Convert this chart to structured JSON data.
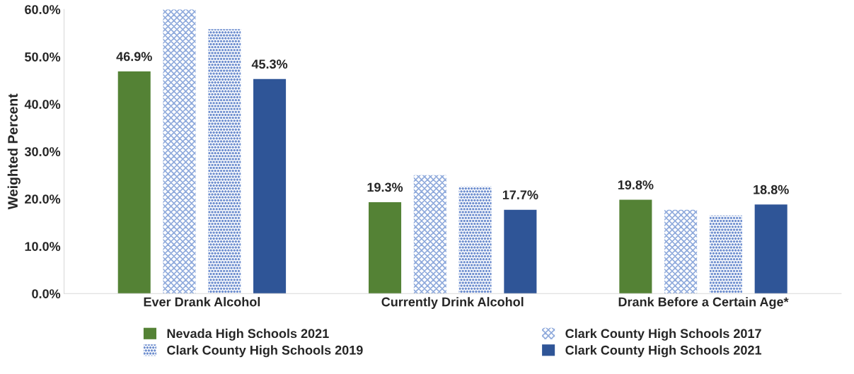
{
  "chart_data": {
    "type": "bar",
    "ylabel": "Weighted Percent",
    "categories": [
      "Ever Drank Alcohol",
      "Currently Drink Alcohol",
      "Drank Before a Certain Age*"
    ],
    "series": [
      {
        "name": "Nevada High Schools 2021",
        "color": "#548235",
        "values": [
          46.9,
          19.3,
          19.8
        ],
        "value_labels": [
          "46.9%",
          "19.3%",
          "19.8%"
        ]
      },
      {
        "name": "Clark County High Schools 2017",
        "color": "#8faadc",
        "values": [
          60.0,
          25.0,
          17.7
        ]
      },
      {
        "name": "Clark County High Schools 2019",
        "color": "#6f8fcf",
        "values": [
          55.8,
          22.6,
          16.5
        ]
      },
      {
        "name": "Clark County High Schools 2021",
        "color": "#2f5597",
        "values": [
          45.3,
          17.7,
          18.8
        ],
        "value_labels": [
          "45.3%",
          "17.7%",
          "18.8%"
        ]
      }
    ],
    "ylim": [
      0,
      60
    ],
    "yticks": [
      {
        "value": 0,
        "label": "0.0%"
      },
      {
        "value": 10,
        "label": "10.0%"
      },
      {
        "value": 20,
        "label": "20.0%"
      },
      {
        "value": 30,
        "label": "30.0%"
      },
      {
        "value": 40,
        "label": "40.0%"
      },
      {
        "value": 50,
        "label": "50.0%"
      },
      {
        "value": 60,
        "label": "60.0%"
      }
    ],
    "legend": "bottom",
    "grid": false
  }
}
